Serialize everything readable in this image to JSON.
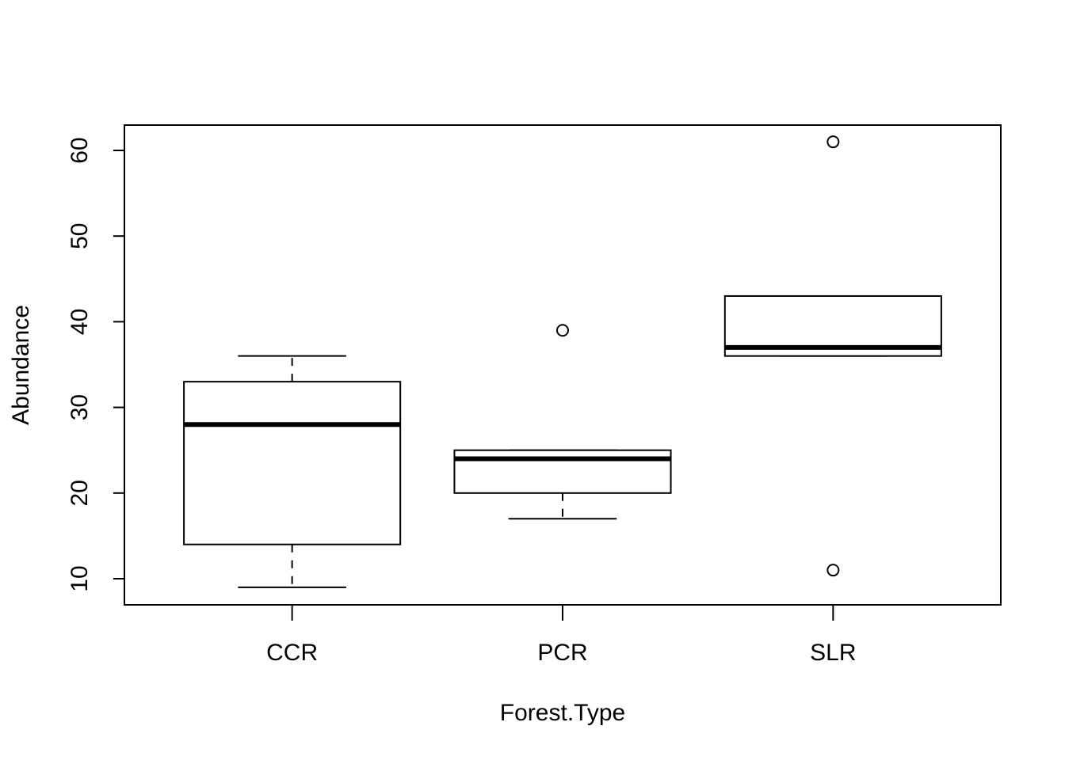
{
  "chart_data": {
    "type": "box",
    "title": "",
    "xlabel": "Forest.Type",
    "ylabel": "Abundance",
    "ylim": [
      7,
      63
    ],
    "yticks": [
      10,
      20,
      30,
      40,
      50,
      60
    ],
    "grid": false,
    "legend": "none",
    "categories": [
      "CCR",
      "PCR",
      "SLR"
    ],
    "boxes": [
      {
        "category": "CCR",
        "whisker_low": 9,
        "q1": 14,
        "median": 28,
        "q3": 33,
        "whisker_high": 36,
        "outliers": []
      },
      {
        "category": "PCR",
        "whisker_low": 17,
        "q1": 20,
        "median": 24,
        "q3": 25,
        "whisker_high": 25,
        "outliers": [
          39
        ]
      },
      {
        "category": "SLR",
        "whisker_low": 36,
        "q1": 36,
        "median": 37,
        "q3": 43,
        "whisker_high": 43,
        "outliers": [
          61,
          11
        ]
      }
    ]
  }
}
